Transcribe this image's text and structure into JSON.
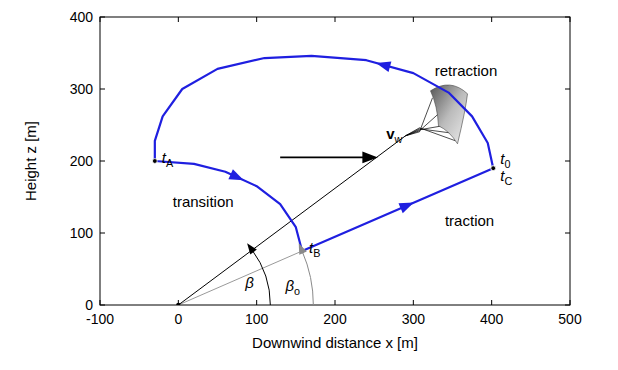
{
  "chart_data": {
    "type": "line",
    "xlabel": "Downwind distance x [m]",
    "ylabel": "Height z [m]",
    "xlim": [
      -100,
      500
    ],
    "ylim": [
      0,
      400
    ],
    "xticks": [
      -100,
      0,
      100,
      200,
      300,
      400,
      500
    ],
    "yticks": [
      0,
      100,
      200,
      300,
      400
    ],
    "grid": false,
    "series": [
      {
        "name": "retraction",
        "color": "#1f1fe0",
        "x": [
          402,
          395,
          375,
          345,
          300,
          240,
          170,
          110,
          50,
          5,
          -20,
          -30,
          -30
        ],
        "values": [
          190,
          225,
          262,
          295,
          322,
          340,
          346,
          343,
          328,
          300,
          262,
          228,
          200
        ]
      },
      {
        "name": "transition",
        "color": "#1f1fe0",
        "x": [
          -30,
          20,
          60,
          100,
          130,
          150,
          158
        ],
        "values": [
          200,
          196,
          185,
          165,
          140,
          108,
          75
        ]
      },
      {
        "name": "traction",
        "color": "#1f1fe0",
        "x": [
          158,
          402
        ],
        "values": [
          75,
          190
        ]
      }
    ],
    "points": [
      {
        "base": "t",
        "sub": "A",
        "x": -30,
        "y": 200
      },
      {
        "base": "t",
        "sub": "B",
        "x": 158,
        "y": 75
      },
      {
        "base": "t",
        "sub": "0",
        "x": 402,
        "y": 190
      },
      {
        "base": "t",
        "sub": "C",
        "x": 402,
        "y": 190
      }
    ],
    "wind": {
      "base": "v",
      "sub": "w",
      "x": [
        130,
        250
      ],
      "values": [
        205,
        205
      ]
    },
    "tether": {
      "x": [
        0,
        290
      ],
      "values": [
        0,
        235
      ]
    },
    "reference_line": {
      "x": [
        0,
        158
      ],
      "values": [
        0,
        75
      ]
    },
    "angles": [
      {
        "base": "β"
      },
      {
        "base": "β",
        "sub": "o"
      }
    ]
  }
}
